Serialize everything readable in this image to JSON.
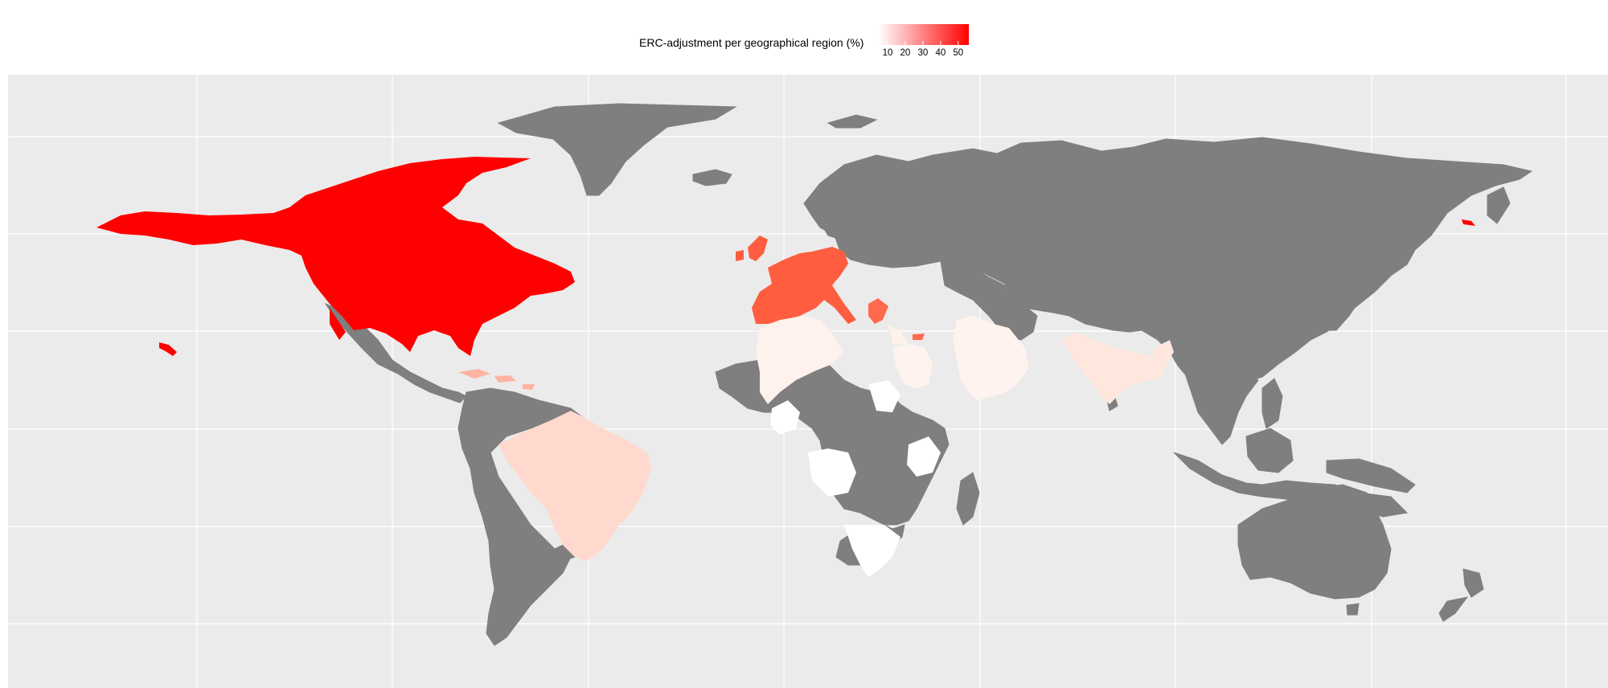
{
  "legend": {
    "title": "ERC-adjustment per geographical region (%)",
    "ticks": [
      "10",
      "20",
      "30",
      "40",
      "50"
    ],
    "tick_values": [
      10,
      20,
      30,
      40,
      50
    ],
    "range": [
      5,
      56
    ],
    "color_low": "#ffffff",
    "color_high": "#ff0000"
  },
  "colors": {
    "panel_background": "#ebebeb",
    "grid": "#ffffff",
    "no_data": "#7f7f7f"
  },
  "map_data": {
    "type": "choropleth",
    "regions": [
      {
        "name": "North America",
        "value": 56
      },
      {
        "name": "Western Europe",
        "value": 42
      },
      {
        "name": "Greece & Cyprus",
        "value": 40
      },
      {
        "name": "Caribbean",
        "value": 20
      },
      {
        "name": "Brazil",
        "value": 14
      },
      {
        "name": "India & Bangladesh",
        "value": 10
      },
      {
        "name": "North Africa",
        "value": 7
      },
      {
        "name": "Middle East",
        "value": 7
      },
      {
        "name": "Sub-Saharan Africa (selected)",
        "value": 5
      }
    ]
  }
}
